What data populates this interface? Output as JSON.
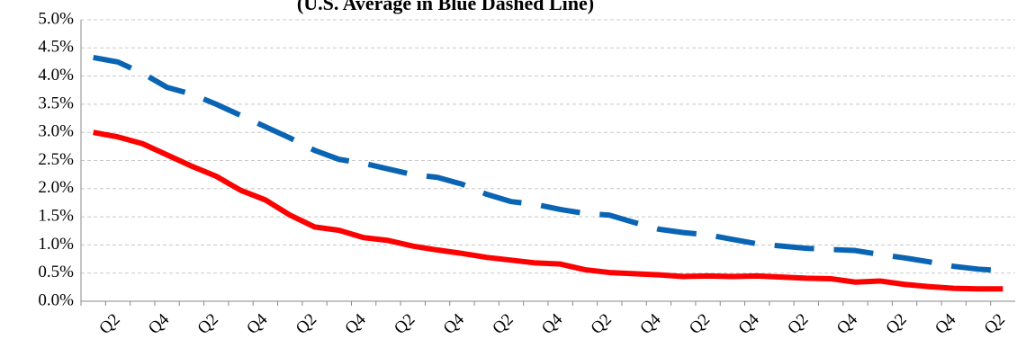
{
  "chart_data": {
    "type": "line",
    "title": "(U.S. Average in Blue Dashed Line)",
    "categories": [
      null,
      "Q2",
      null,
      "Q4",
      null,
      "Q2",
      null,
      "Q4",
      null,
      "Q2",
      null,
      "Q4",
      null,
      "Q2",
      null,
      "Q4",
      null,
      "Q2",
      null,
      "Q4",
      null,
      "Q2",
      null,
      "Q4",
      null,
      "Q2",
      null,
      "Q4",
      null,
      "Q2",
      null,
      "Q4",
      null,
      "Q2",
      null,
      "Q4",
      null,
      "Q2"
    ],
    "series": [
      {
        "color": "#ff0000",
        "dash": false,
        "values": [
          3.0,
          2.92,
          2.8,
          2.6,
          2.4,
          2.22,
          1.97,
          1.8,
          1.53,
          1.32,
          1.26,
          1.13,
          1.08,
          0.98,
          0.91,
          0.85,
          0.78,
          0.73,
          0.68,
          0.66,
          0.56,
          0.51,
          0.49,
          0.47,
          0.44,
          0.45,
          0.44,
          0.45,
          0.43,
          0.41,
          0.4,
          0.34,
          0.36,
          0.3,
          0.26,
          0.23,
          0.22,
          0.22
        ]
      },
      {
        "color": "#0a64b4",
        "dash": true,
        "values": [
          4.33,
          4.25,
          4.05,
          3.8,
          3.68,
          3.5,
          3.3,
          3.1,
          2.9,
          2.68,
          2.52,
          2.45,
          2.35,
          2.25,
          2.2,
          2.08,
          1.9,
          1.77,
          1.72,
          1.63,
          1.56,
          1.53,
          1.4,
          1.28,
          1.22,
          1.18,
          1.1,
          1.02,
          0.98,
          0.94,
          0.92,
          0.9,
          0.83,
          0.77,
          0.7,
          0.62,
          0.57,
          0.54
        ]
      }
    ],
    "ylim": [
      0,
      5
    ],
    "yticks": [
      {
        "value": 0,
        "label": "0.0%"
      },
      {
        "value": 0.5,
        "label": "0.5%"
      },
      {
        "value": 1,
        "label": "1.0%"
      },
      {
        "value": 1.5,
        "label": "1.5%"
      },
      {
        "value": 2,
        "label": "2.0%"
      },
      {
        "value": 2.5,
        "label": "2.5%"
      },
      {
        "value": 3,
        "label": "3.0%"
      },
      {
        "value": 3.5,
        "label": "3.5%"
      },
      {
        "value": 4,
        "label": "4.0%"
      },
      {
        "value": 4.5,
        "label": "4.5%"
      },
      {
        "value": 5,
        "label": "5.0%"
      }
    ],
    "grid": true
  }
}
